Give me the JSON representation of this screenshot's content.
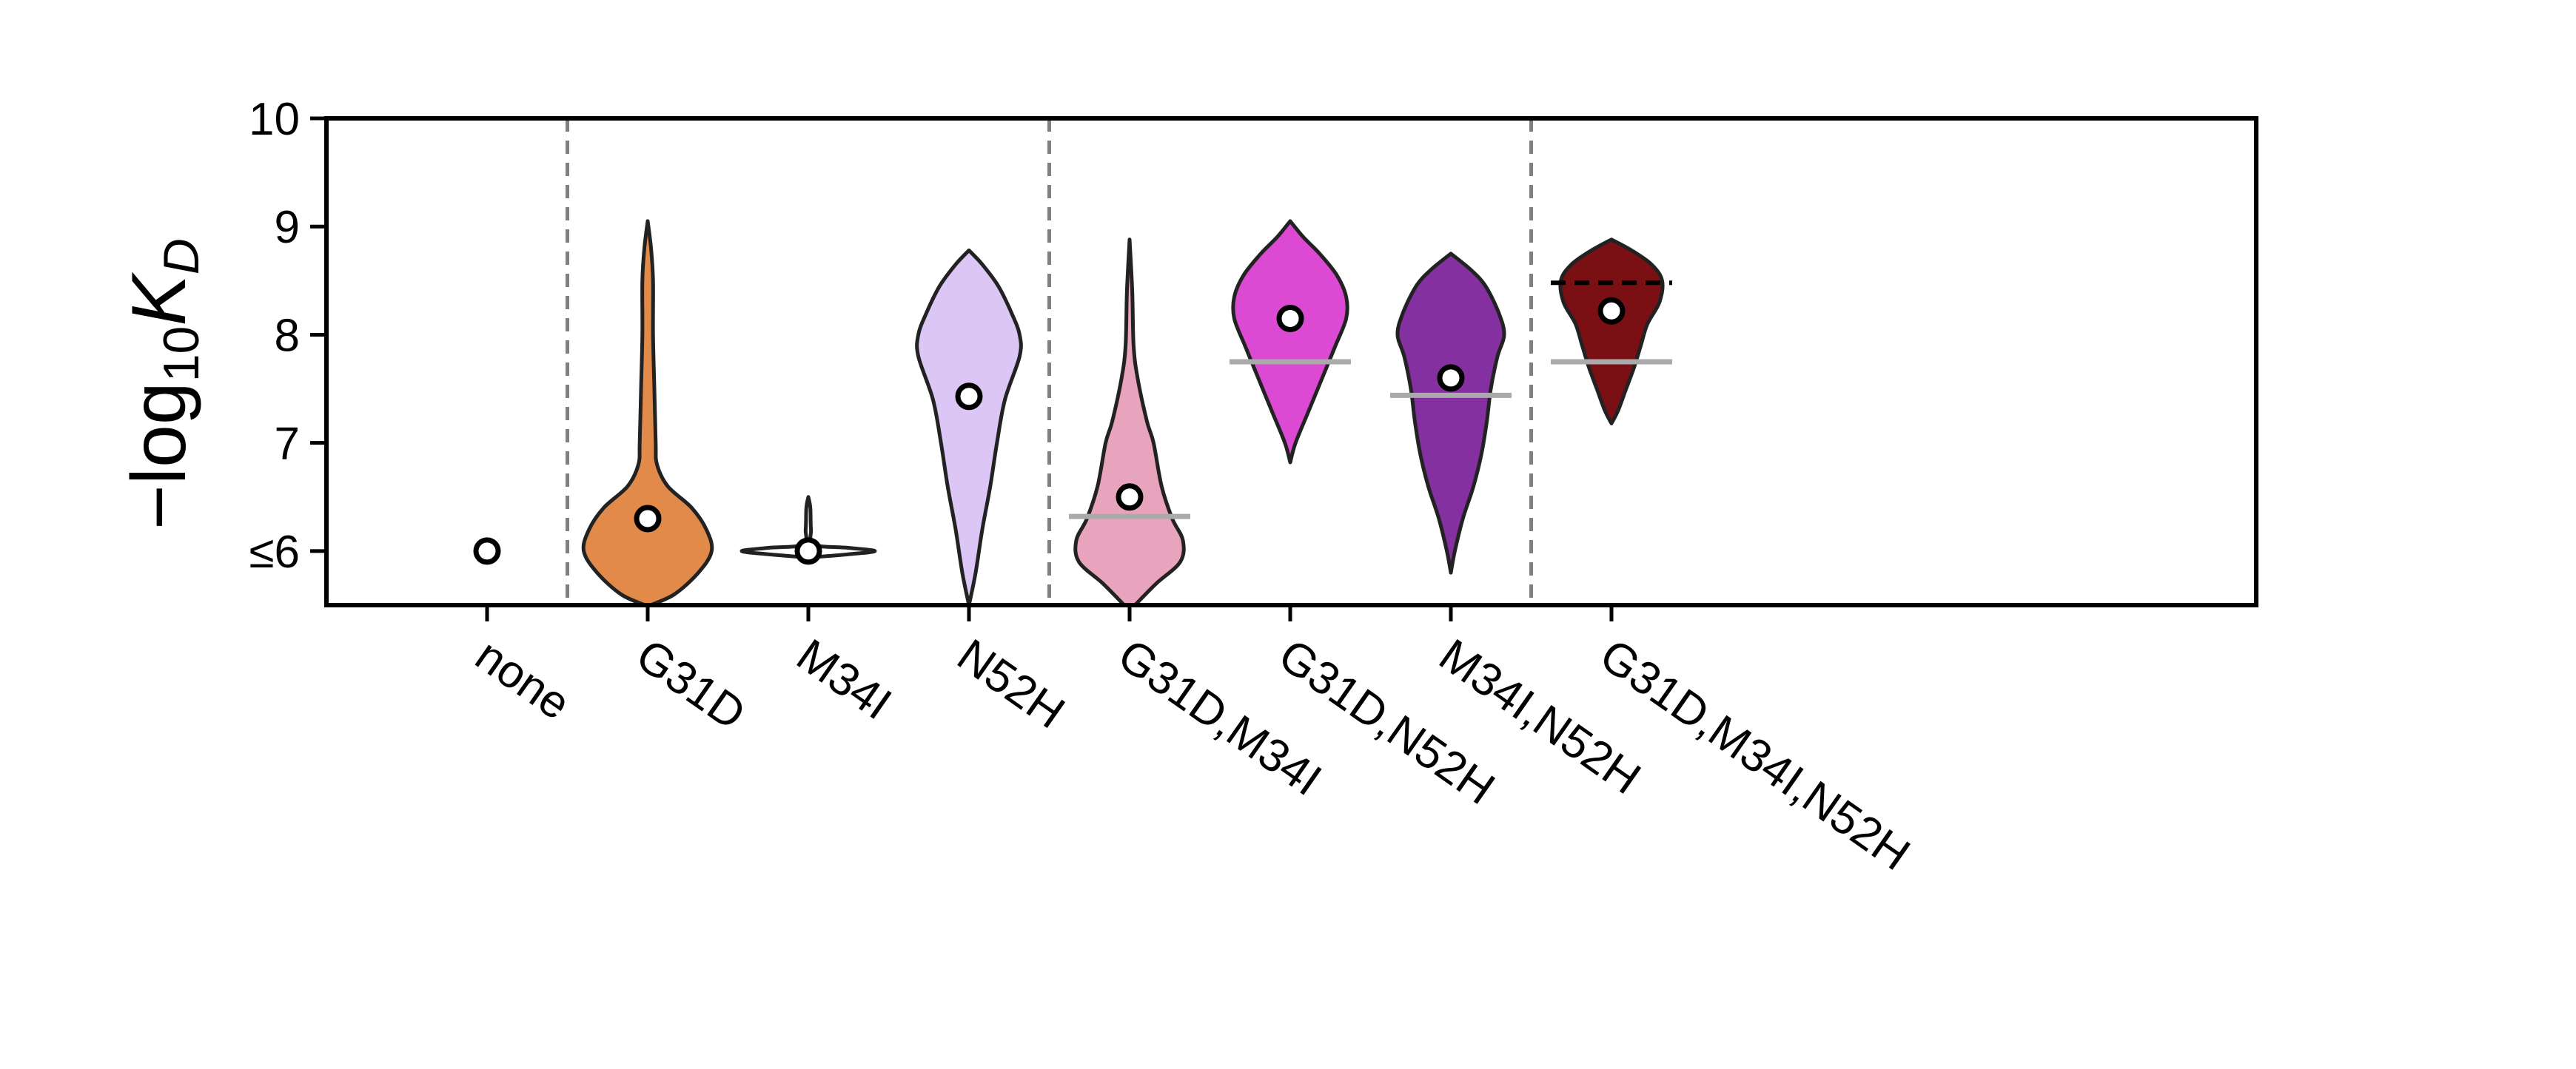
{
  "chart_data": {
    "type": "violin",
    "title": "",
    "xlabel": "",
    "ylabel": "−log₁₀K_D",
    "ylabel_parts": {
      "prefix": "−log",
      "subscript": "10",
      "italic": "K",
      "italic_subscript": "D"
    },
    "ylim": [
      5.5,
      10
    ],
    "yticks": [
      {
        "value": 6,
        "label": "≤6"
      },
      {
        "value": 7,
        "label": "7"
      },
      {
        "value": 8,
        "label": "8"
      },
      {
        "value": 9,
        "label": "9"
      },
      {
        "value": 10,
        "label": "10"
      }
    ],
    "categories": [
      "none",
      "G31D",
      "M34I",
      "N52H",
      "G31D,M34I",
      "G31D,N52H",
      "M34I,N52H",
      "G31D,M34I,N52H"
    ],
    "group_dividers_after_index": [
      0,
      3,
      6
    ],
    "colors": {
      "none": "#ffffff",
      "G31D": "#e28a4a",
      "M34I": "#ffffff",
      "N52H": "#dcc6f5",
      "G31D,M34I": "#e8a4bc",
      "G31D,N52H": "#dc4ad4",
      "M34I,N52H": "#8430a0",
      "G31D,M34I,N52H": "#7a1014",
      "outline": "#222222",
      "divider": "#808080",
      "reference_line": "#aaaaaa",
      "marker_edge": "#000000",
      "marker_fill": "#ffffff"
    },
    "series": [
      {
        "category": "none",
        "point": 6.0,
        "reference_line": null,
        "dashed_line": null,
        "violin": []
      },
      {
        "category": "G31D",
        "point": 6.3,
        "reference_line": null,
        "dashed_line": null,
        "violin": [
          [
            5.5,
            0.02
          ],
          [
            5.6,
            0.2
          ],
          [
            5.8,
            0.38
          ],
          [
            6.0,
            0.48
          ],
          [
            6.2,
            0.44
          ],
          [
            6.4,
            0.33
          ],
          [
            6.6,
            0.15
          ],
          [
            6.8,
            0.07
          ],
          [
            7.0,
            0.06
          ],
          [
            7.5,
            0.05
          ],
          [
            8.0,
            0.04
          ],
          [
            8.5,
            0.04
          ],
          [
            8.8,
            0.025
          ],
          [
            9.05,
            0.0
          ]
        ]
      },
      {
        "category": "M34I",
        "point": 6.0,
        "reference_line": null,
        "dashed_line": null,
        "violin": [
          [
            5.94,
            0.0
          ],
          [
            5.97,
            0.3
          ],
          [
            6.0,
            0.5
          ],
          [
            6.03,
            0.3
          ],
          [
            6.06,
            0.04
          ],
          [
            6.2,
            0.02
          ],
          [
            6.4,
            0.015
          ],
          [
            6.5,
            0.0
          ]
        ]
      },
      {
        "category": "N52H",
        "point": 7.43,
        "reference_line": null,
        "dashed_line": null,
        "violin": [
          [
            5.5,
            0.0
          ],
          [
            5.8,
            0.05
          ],
          [
            6.2,
            0.1
          ],
          [
            6.6,
            0.16
          ],
          [
            7.0,
            0.21
          ],
          [
            7.4,
            0.27
          ],
          [
            7.8,
            0.38
          ],
          [
            8.0,
            0.38
          ],
          [
            8.2,
            0.32
          ],
          [
            8.45,
            0.22
          ],
          [
            8.65,
            0.1
          ],
          [
            8.78,
            0.0
          ]
        ]
      },
      {
        "category": "G31D,M34I",
        "point": 6.5,
        "reference_line": 6.32,
        "dashed_line": null,
        "violin": [
          [
            5.5,
            0.04
          ],
          [
            5.7,
            0.2
          ],
          [
            5.9,
            0.38
          ],
          [
            6.1,
            0.4
          ],
          [
            6.3,
            0.32
          ],
          [
            6.6,
            0.24
          ],
          [
            7.0,
            0.18
          ],
          [
            7.2,
            0.13
          ],
          [
            7.6,
            0.06
          ],
          [
            7.9,
            0.03
          ],
          [
            8.4,
            0.02
          ],
          [
            8.88,
            0.0
          ]
        ]
      },
      {
        "category": "G31D,N52H",
        "point": 8.15,
        "reference_line": 7.75,
        "dashed_line": null,
        "violin": [
          [
            6.82,
            0.0
          ],
          [
            7.0,
            0.04
          ],
          [
            7.3,
            0.14
          ],
          [
            7.6,
            0.24
          ],
          [
            7.9,
            0.34
          ],
          [
            8.15,
            0.42
          ],
          [
            8.35,
            0.42
          ],
          [
            8.55,
            0.35
          ],
          [
            8.75,
            0.22
          ],
          [
            8.9,
            0.1
          ],
          [
            9.05,
            0.0
          ]
        ]
      },
      {
        "category": "M34I,N52H",
        "point": 7.6,
        "reference_line": 7.44,
        "dashed_line": null,
        "violin": [
          [
            5.8,
            0.0
          ],
          [
            6.0,
            0.03
          ],
          [
            6.3,
            0.09
          ],
          [
            6.6,
            0.17
          ],
          [
            6.9,
            0.23
          ],
          [
            7.2,
            0.27
          ],
          [
            7.5,
            0.3
          ],
          [
            7.8,
            0.35
          ],
          [
            8.0,
            0.4
          ],
          [
            8.2,
            0.36
          ],
          [
            8.45,
            0.26
          ],
          [
            8.6,
            0.15
          ],
          [
            8.75,
            0.0
          ]
        ]
      },
      {
        "category": "G31D,M34I,N52H",
        "point": 8.22,
        "reference_line": 7.75,
        "dashed_line": 8.48,
        "violin": [
          [
            7.18,
            0.0
          ],
          [
            7.3,
            0.05
          ],
          [
            7.5,
            0.11
          ],
          [
            7.7,
            0.17
          ],
          [
            7.9,
            0.22
          ],
          [
            8.1,
            0.27
          ],
          [
            8.3,
            0.36
          ],
          [
            8.5,
            0.38
          ],
          [
            8.65,
            0.3
          ],
          [
            8.78,
            0.15
          ],
          [
            8.88,
            0.0
          ]
        ]
      }
    ]
  }
}
